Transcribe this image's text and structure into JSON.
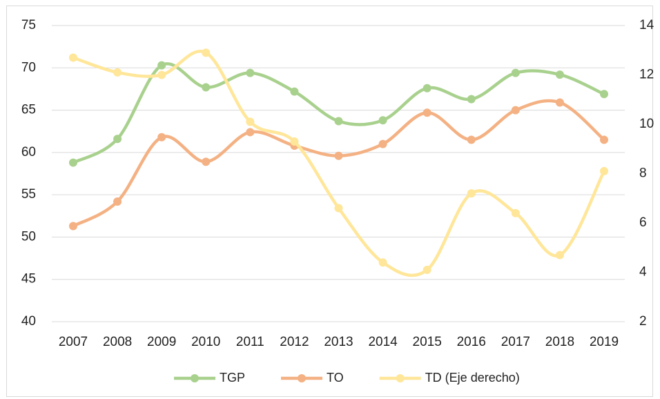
{
  "chart_data": {
    "type": "line",
    "categories": [
      "2007",
      "2008",
      "2009",
      "2010",
      "2011",
      "2012",
      "2013",
      "2014",
      "2015",
      "2016",
      "2017",
      "2018",
      "2019"
    ],
    "series": [
      {
        "name": "TGP",
        "color": "#a9d18e",
        "values": [
          58.8,
          61.6,
          70.3,
          67.7,
          69.4,
          67.2,
          63.7,
          63.8,
          67.6,
          66.3,
          69.4,
          69.2,
          66.9
        ]
      },
      {
        "name": "TO",
        "color": "#f4b183",
        "values": [
          51.3,
          54.2,
          61.8,
          58.9,
          62.4,
          60.8,
          59.6,
          61.0,
          64.7,
          61.5,
          65.0,
          65.9,
          61.5
        ]
      },
      {
        "name": "TD (Eje derecho)",
        "color": "#ffe699",
        "axis": "y2",
        "values": [
          12.7,
          12.1,
          12.0,
          12.9,
          10.1,
          9.3,
          6.6,
          4.4,
          4.1,
          7.2,
          6.4,
          4.7,
          8.1
        ]
      }
    ],
    "ylim": [
      40,
      75
    ],
    "yticks": [
      40,
      45,
      50,
      55,
      60,
      65,
      70,
      75
    ],
    "y2lim": [
      2,
      14
    ],
    "y2ticks": [
      2,
      4,
      6,
      8,
      10,
      12,
      14
    ],
    "grid": true,
    "smooth": true,
    "legend": "bottom"
  }
}
